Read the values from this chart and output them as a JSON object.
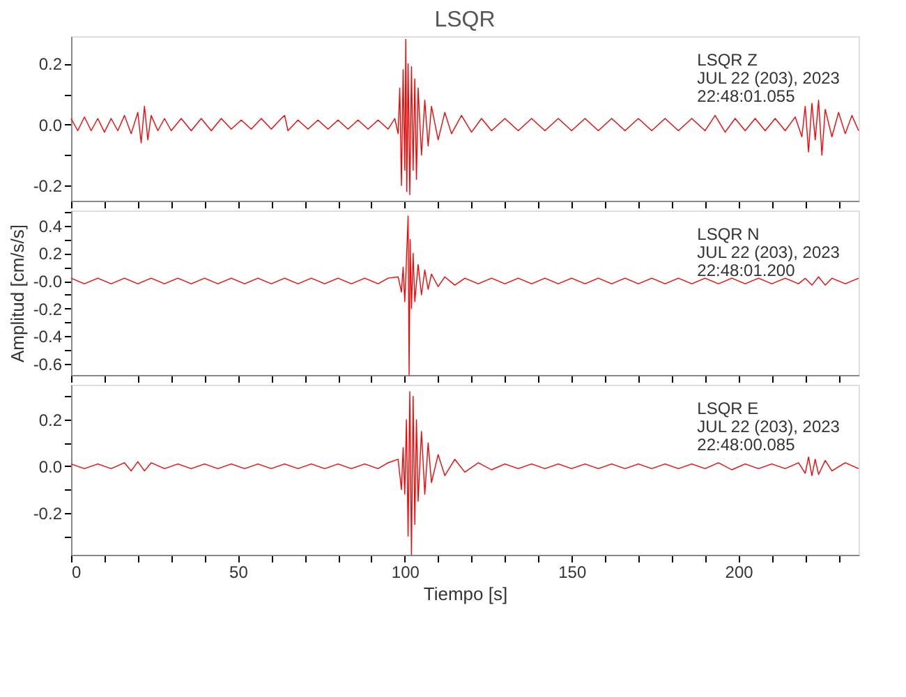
{
  "chart_data": [
    {
      "type": "line",
      "title": "LSQR",
      "annotations": [
        "LSQR   Z",
        "JUL 22 (203), 2023",
        "22:48:01.055"
      ],
      "xlim": [
        0,
        236
      ],
      "ylim": [
        -0.25,
        0.29
      ],
      "tick_labels": "y",
      "grid": false,
      "marker": "none",
      "line_style": "solid",
      "xticks": [
        0,
        {
          "value": 10,
          "label": null
        },
        {
          "value": 20,
          "label": null
        },
        {
          "value": 30,
          "label": null
        },
        {
          "value": 40,
          "label": null
        },
        50,
        {
          "value": 60,
          "label": null
        },
        {
          "value": 70,
          "label": null
        },
        {
          "value": 80,
          "label": null
        },
        {
          "value": 90,
          "label": null
        },
        100,
        {
          "value": 110,
          "label": null
        },
        {
          "value": 120,
          "label": null
        },
        {
          "value": 130,
          "label": null
        },
        {
          "value": 140,
          "label": null
        },
        150,
        {
          "value": 160,
          "label": null
        },
        {
          "value": 170,
          "label": null
        },
        {
          "value": 180,
          "label": null
        },
        {
          "value": 190,
          "label": null
        },
        200,
        {
          "value": 210,
          "label": null
        },
        {
          "value": 220,
          "label": null
        },
        {
          "value": 230,
          "label": null
        }
      ],
      "yticks": [
        -0.2,
        {
          "value": -0.1,
          "label": null
        },
        {
          "value": 0,
          "label": "0.0"
        },
        {
          "value": 0.1,
          "label": null
        },
        0.2
      ],
      "series": [
        {
          "color": "#ff0000",
          "x": [
            0,
            2,
            4,
            6,
            8,
            10,
            12,
            14,
            16,
            18,
            20,
            21,
            22,
            23,
            24,
            26,
            28,
            30,
            33,
            36,
            39,
            42,
            45,
            48,
            51,
            54,
            57,
            60,
            63,
            64,
            65,
            68,
            71,
            74,
            77,
            80,
            83,
            86,
            89,
            92,
            95,
            97,
            98,
            98.5,
            99,
            99.5,
            100,
            100.3,
            100.6,
            101,
            101.5,
            102,
            102.5,
            103,
            103.5,
            104,
            105,
            106,
            107,
            108,
            110,
            112,
            114,
            117,
            120,
            123,
            126,
            130,
            134,
            138,
            142,
            146,
            150,
            154,
            158,
            162,
            166,
            170,
            174,
            178,
            182,
            186,
            190,
            193,
            196,
            199,
            202,
            205,
            208,
            211,
            214,
            217,
            219,
            220,
            221,
            222,
            223,
            224,
            225,
            226,
            228,
            230,
            232,
            234,
            236
          ],
          "values": [
            0.02,
            -0.02,
            0.025,
            -0.02,
            0.02,
            -0.025,
            0.02,
            -0.02,
            0.03,
            -0.03,
            0.04,
            -0.06,
            0.06,
            -0.05,
            0.03,
            -0.02,
            0.02,
            -0.02,
            0.02,
            -0.02,
            0.02,
            -0.02,
            0.02,
            -0.015,
            0.015,
            -0.015,
            0.02,
            -0.015,
            0.02,
            0.03,
            -0.02,
            0.015,
            -0.015,
            0.015,
            -0.015,
            0.015,
            -0.015,
            0.015,
            -0.015,
            0.015,
            -0.015,
            0.02,
            -0.03,
            0.12,
            -0.2,
            0.18,
            -0.15,
            0.28,
            -0.22,
            0.2,
            -0.23,
            0.19,
            -0.15,
            0.15,
            -0.18,
            0.12,
            -0.1,
            0.08,
            -0.07,
            0.06,
            -0.05,
            0.04,
            -0.03,
            0.03,
            -0.025,
            0.02,
            -0.02,
            0.02,
            -0.02,
            0.02,
            -0.02,
            0.02,
            -0.02,
            0.02,
            -0.02,
            0.02,
            -0.02,
            0.02,
            -0.02,
            0.02,
            -0.02,
            0.02,
            -0.02,
            0.03,
            -0.025,
            0.02,
            -0.02,
            0.02,
            -0.02,
            0.02,
            -0.02,
            0.025,
            -0.04,
            0.06,
            -0.09,
            0.07,
            -0.05,
            0.08,
            -0.1,
            0.05,
            -0.04,
            0.04,
            -0.03,
            0.03,
            -0.02
          ]
        }
      ]
    },
    {
      "type": "line",
      "ylabel": "Amplitud [cm/s/s]",
      "annotations": [
        "LSQR   N",
        "JUL 22 (203), 2023",
        "22:48:01.200"
      ],
      "xlim": [
        0,
        236
      ],
      "ylim": [
        -0.68,
        0.51
      ],
      "tick_labels": "y",
      "grid": false,
      "marker": "none",
      "line_style": "solid",
      "xticks": [
        0,
        {
          "value": 10,
          "label": null
        },
        {
          "value": 20,
          "label": null
        },
        {
          "value": 30,
          "label": null
        },
        {
          "value": 40,
          "label": null
        },
        50,
        {
          "value": 60,
          "label": null
        },
        {
          "value": 70,
          "label": null
        },
        {
          "value": 80,
          "label": null
        },
        {
          "value": 90,
          "label": null
        },
        100,
        {
          "value": 110,
          "label": null
        },
        {
          "value": 120,
          "label": null
        },
        {
          "value": 130,
          "label": null
        },
        {
          "value": 140,
          "label": null
        },
        150,
        {
          "value": 160,
          "label": null
        },
        {
          "value": 170,
          "label": null
        },
        {
          "value": 180,
          "label": null
        },
        {
          "value": 190,
          "label": null
        },
        200,
        {
          "value": 210,
          "label": null
        },
        {
          "value": 220,
          "label": null
        },
        {
          "value": 230,
          "label": null
        }
      ],
      "yticks": [
        -0.6,
        {
          "value": -0.5,
          "label": null
        },
        -0.4,
        {
          "value": -0.3,
          "label": null
        },
        -0.2,
        {
          "value": -0.1,
          "label": null
        },
        {
          "value": 0,
          "label": "-0.0"
        },
        {
          "value": 0.1,
          "label": null
        },
        0.2,
        {
          "value": 0.3,
          "label": null
        },
        0.4,
        {
          "value": 0.5,
          "label": null
        }
      ],
      "series": [
        {
          "color": "#ff0000",
          "x": [
            0,
            4,
            8,
            12,
            16,
            20,
            24,
            28,
            32,
            36,
            40,
            44,
            48,
            52,
            56,
            60,
            64,
            68,
            72,
            76,
            80,
            84,
            88,
            92,
            95,
            98,
            99,
            99.5,
            100,
            100.5,
            101,
            101.3,
            101.6,
            102,
            102.5,
            103,
            104,
            105,
            106,
            107,
            108,
            110,
            112,
            115,
            118,
            122,
            126,
            130,
            134,
            138,
            142,
            146,
            150,
            154,
            158,
            162,
            166,
            170,
            174,
            178,
            182,
            186,
            190,
            194,
            198,
            202,
            206,
            210,
            214,
            218,
            220,
            222,
            224,
            226,
            228,
            232,
            236
          ],
          "values": [
            0.02,
            -0.02,
            0.02,
            -0.02,
            0.02,
            -0.02,
            0.02,
            -0.02,
            0.02,
            -0.02,
            0.02,
            -0.02,
            0.02,
            -0.02,
            0.02,
            -0.02,
            0.02,
            -0.02,
            0.02,
            -0.02,
            0.02,
            -0.02,
            0.02,
            -0.02,
            0.02,
            0.03,
            -0.08,
            0.1,
            -0.15,
            0.15,
            0.47,
            -0.68,
            0.3,
            -0.2,
            0.2,
            -0.15,
            0.12,
            -0.1,
            0.08,
            -0.06,
            0.05,
            -0.04,
            0.03,
            -0.03,
            0.02,
            -0.02,
            0.02,
            -0.02,
            0.02,
            -0.02,
            0.02,
            -0.02,
            0.02,
            -0.02,
            0.02,
            -0.02,
            0.02,
            -0.02,
            0.02,
            -0.02,
            0.02,
            -0.02,
            0.02,
            -0.02,
            0.02,
            -0.02,
            0.02,
            -0.02,
            0.02,
            -0.02,
            0.02,
            -0.03,
            0.03,
            -0.03,
            0.02,
            -0.02,
            0.02
          ]
        }
      ]
    },
    {
      "type": "line",
      "xlabel": "Tiempo [s]",
      "annotations": [
        "LSQR   E",
        "JUL 22 (203), 2023",
        "22:48:00.085"
      ],
      "xlim": [
        0,
        236
      ],
      "ylim": [
        -0.38,
        0.35
      ],
      "grid": false,
      "marker": "none",
      "line_style": "solid",
      "xticks": [
        0,
        {
          "value": 10,
          "label": null
        },
        {
          "value": 20,
          "label": null
        },
        {
          "value": 30,
          "label": null
        },
        {
          "value": 40,
          "label": null
        },
        50,
        {
          "value": 60,
          "label": null
        },
        {
          "value": 70,
          "label": null
        },
        {
          "value": 80,
          "label": null
        },
        {
          "value": 90,
          "label": null
        },
        100,
        {
          "value": 110,
          "label": null
        },
        {
          "value": 120,
          "label": null
        },
        {
          "value": 130,
          "label": null
        },
        {
          "value": 140,
          "label": null
        },
        150,
        {
          "value": 160,
          "label": null
        },
        {
          "value": 170,
          "label": null
        },
        {
          "value": 180,
          "label": null
        },
        {
          "value": 190,
          "label": null
        },
        200,
        {
          "value": 210,
          "label": null
        },
        {
          "value": 220,
          "label": null
        },
        {
          "value": 230,
          "label": null
        }
      ],
      "yticks": [
        {
          "value": -0.3,
          "label": null
        },
        -0.2,
        {
          "value": -0.1,
          "label": null
        },
        {
          "value": 0,
          "label": "0.0"
        },
        {
          "value": 0.1,
          "label": null
        },
        0.2,
        {
          "value": 0.3,
          "label": null
        }
      ],
      "series": [
        {
          "color": "#ff0000",
          "x": [
            0,
            4,
            8,
            12,
            16,
            18,
            20,
            22,
            24,
            28,
            32,
            36,
            40,
            44,
            48,
            52,
            56,
            60,
            64,
            68,
            72,
            76,
            80,
            84,
            88,
            92,
            95,
            98,
            99,
            99.5,
            100,
            100.5,
            101,
            101.5,
            102,
            102.5,
            103,
            103.5,
            104,
            105,
            106,
            107,
            108,
            110,
            112,
            115,
            118,
            122,
            126,
            130,
            134,
            138,
            142,
            146,
            150,
            154,
            158,
            162,
            166,
            170,
            174,
            178,
            182,
            186,
            190,
            194,
            198,
            202,
            206,
            210,
            214,
            218,
            220,
            221,
            222,
            223,
            224,
            226,
            228,
            232,
            236
          ],
          "values": [
            0.01,
            -0.01,
            0.01,
            -0.01,
            0.015,
            -0.02,
            0.02,
            -0.02,
            0.015,
            -0.01,
            0.01,
            -0.01,
            0.01,
            -0.01,
            0.01,
            -0.01,
            0.01,
            -0.01,
            0.01,
            -0.01,
            0.01,
            -0.01,
            0.01,
            -0.01,
            0.01,
            -0.01,
            0.015,
            0.03,
            -0.1,
            0.08,
            -0.12,
            0.2,
            -0.3,
            0.32,
            -0.38,
            0.3,
            -0.25,
            0.2,
            -0.15,
            0.15,
            -0.12,
            0.1,
            -0.07,
            0.05,
            -0.04,
            0.03,
            -0.025,
            0.015,
            -0.015,
            0.01,
            -0.01,
            0.01,
            -0.01,
            0.01,
            -0.01,
            0.01,
            -0.01,
            0.01,
            -0.01,
            0.01,
            -0.01,
            0.01,
            -0.01,
            0.01,
            -0.01,
            0.015,
            -0.015,
            0.01,
            -0.01,
            0.01,
            -0.01,
            0.015,
            -0.03,
            0.04,
            -0.04,
            0.03,
            -0.035,
            0.025,
            -0.02,
            0.015,
            -0.01
          ]
        }
      ]
    }
  ]
}
